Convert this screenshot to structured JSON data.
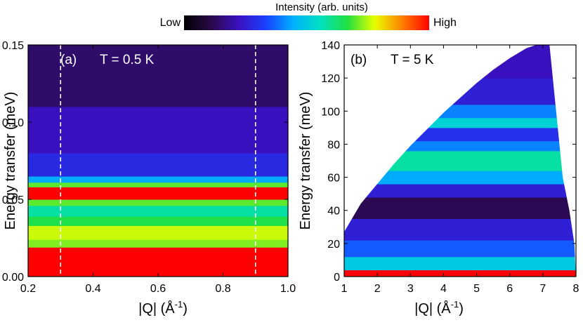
{
  "colorbar": {
    "title": "Intensity (arb. units)",
    "low_label": "Low",
    "high_label": "High",
    "stops": [
      "#000000",
      "#2a0a4a",
      "#3a10c0",
      "#1a40ff",
      "#00b0ff",
      "#00e0c0",
      "#20e040",
      "#e8ff00",
      "#ff8000",
      "#ff0000"
    ]
  },
  "chart_data": [
    {
      "type": "heatmap",
      "panel_label": "(a)",
      "annotation": "T = 0.5 K",
      "xlabel": "|Q| (Å",
      "xlabel_sup": "-1",
      "xlabel_close": ")",
      "ylabel": "Energy transfer (meV)",
      "xlim": [
        0.2,
        1.0
      ],
      "ylim": [
        0.0,
        0.15
      ],
      "xticks": [
        "0.2",
        "0.4",
        "0.6",
        "0.8",
        "1.0"
      ],
      "xtick_values": [
        0.2,
        0.4,
        0.6,
        0.8,
        1.0
      ],
      "yticks": [
        "0.00",
        "0.05",
        "0.10",
        "0.15"
      ],
      "ytick_values": [
        0.0,
        0.05,
        0.1,
        0.15
      ],
      "dashed_lines_x": [
        0.3,
        0.9
      ],
      "energy_bands": [
        {
          "e_min": 0.0,
          "e_max": 0.019,
          "intensity": 1.0
        },
        {
          "e_min": 0.019,
          "e_max": 0.024,
          "intensity": 0.72
        },
        {
          "e_min": 0.024,
          "e_max": 0.033,
          "intensity": 0.76
        },
        {
          "e_min": 0.033,
          "e_max": 0.039,
          "intensity": 0.66
        },
        {
          "e_min": 0.039,
          "e_max": 0.046,
          "intensity": 0.58
        },
        {
          "e_min": 0.046,
          "e_max": 0.05,
          "intensity": 0.7
        },
        {
          "e_min": 0.05,
          "e_max": 0.058,
          "intensity": 1.0
        },
        {
          "e_min": 0.058,
          "e_max": 0.061,
          "intensity": 0.7
        },
        {
          "e_min": 0.061,
          "e_max": 0.065,
          "intensity": 0.44
        },
        {
          "e_min": 0.065,
          "e_max": 0.08,
          "intensity": 0.28
        },
        {
          "e_min": 0.08,
          "e_max": 0.11,
          "intensity": 0.22
        },
        {
          "e_min": 0.11,
          "e_max": 0.15,
          "intensity": 0.14
        }
      ]
    },
    {
      "type": "heatmap",
      "panel_label": "(b)",
      "annotation": "T = 5 K",
      "xlabel": "|Q| (Å",
      "xlabel_sup": "-1",
      "xlabel_close": ")",
      "ylabel": "Energy transfer (meV)",
      "xlim": [
        1,
        8
      ],
      "ylim": [
        0,
        140
      ],
      "xticks": [
        "1",
        "2",
        "3",
        "4",
        "5",
        "6",
        "7",
        "8"
      ],
      "xtick_values": [
        1,
        2,
        3,
        4,
        5,
        6,
        7,
        8
      ],
      "yticks": [
        "0",
        "20",
        "40",
        "60",
        "80",
        "100",
        "120",
        "140"
      ],
      "ytick_values": [
        0,
        20,
        40,
        60,
        80,
        100,
        120,
        140
      ],
      "coverage_boundary": {
        "lower_left": [
          [
            1,
            27
          ],
          [
            1.5,
            44
          ],
          [
            2,
            56
          ],
          [
            2.5,
            68
          ],
          [
            3,
            79
          ],
          [
            3.5,
            89
          ],
          [
            4,
            99
          ],
          [
            4.5,
            108
          ],
          [
            5,
            117
          ],
          [
            5.5,
            125
          ],
          [
            6,
            132
          ],
          [
            6.5,
            138
          ],
          [
            6.8,
            140
          ]
        ],
        "right": [
          [
            7.2,
            140
          ],
          [
            7.3,
            120
          ],
          [
            7.4,
            100
          ],
          [
            7.5,
            80
          ],
          [
            7.6,
            60
          ],
          [
            7.8,
            40
          ],
          [
            7.95,
            20
          ],
          [
            8,
            0
          ]
        ]
      },
      "energy_bands": [
        {
          "e_min": 0,
          "e_max": 4,
          "intensity": 1.0
        },
        {
          "e_min": 4,
          "e_max": 12,
          "intensity": 0.5
        },
        {
          "e_min": 12,
          "e_max": 22,
          "intensity": 0.36
        },
        {
          "e_min": 22,
          "e_max": 35,
          "intensity": 0.26
        },
        {
          "e_min": 35,
          "e_max": 48,
          "intensity": 0.12
        },
        {
          "e_min": 48,
          "e_max": 56,
          "intensity": 0.26
        },
        {
          "e_min": 56,
          "e_max": 64,
          "intensity": 0.44
        },
        {
          "e_min": 64,
          "e_max": 76,
          "intensity": 0.58
        },
        {
          "e_min": 76,
          "e_max": 82,
          "intensity": 0.4
        },
        {
          "e_min": 82,
          "e_max": 90,
          "intensity": 0.3
        },
        {
          "e_min": 90,
          "e_max": 96,
          "intensity": 0.52
        },
        {
          "e_min": 96,
          "e_max": 104,
          "intensity": 0.4
        },
        {
          "e_min": 104,
          "e_max": 120,
          "intensity": 0.26
        },
        {
          "e_min": 120,
          "e_max": 140,
          "intensity": 0.22
        }
      ]
    }
  ]
}
